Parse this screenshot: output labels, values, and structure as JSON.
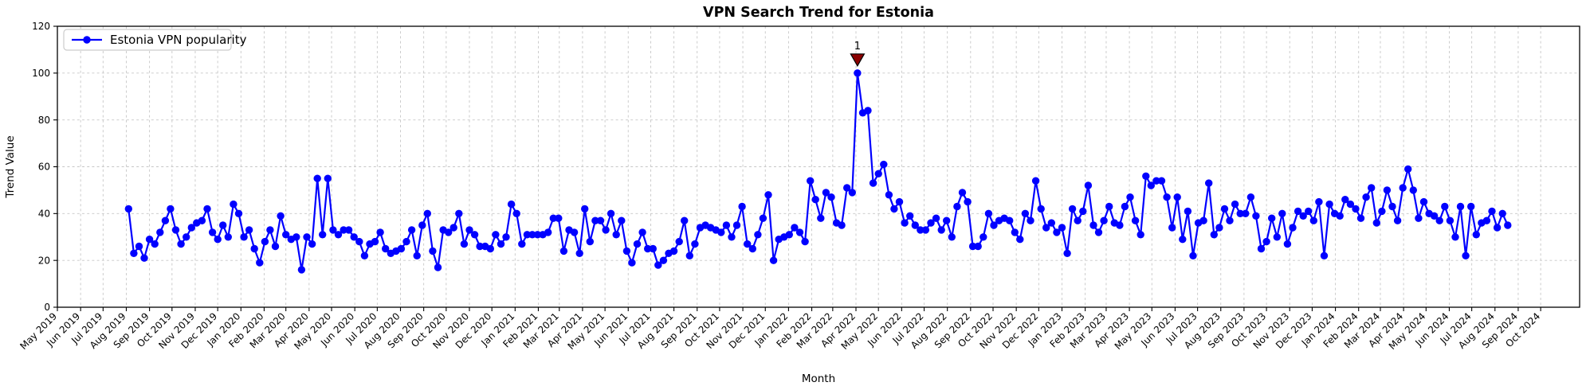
{
  "chart_data": {
    "type": "line",
    "title": "VPN Search Trend for Estonia",
    "xlabel": "Month",
    "ylabel": "Trend Value",
    "ylim": [
      0,
      120
    ],
    "yticks": [
      0,
      20,
      40,
      60,
      80,
      100,
      120
    ],
    "xlim": [
      "2019-05-01",
      "2024-11-22"
    ],
    "grid": true,
    "legend_position": "upper left",
    "xtick_labels": [
      "May 2019",
      "Jun 2019",
      "Jul 2019",
      "Aug 2019",
      "Sep 2019",
      "Oct 2019",
      "Nov 2019",
      "Dec 2019",
      "Jan 2020",
      "Feb 2020",
      "Mar 2020",
      "Apr 2020",
      "May 2020",
      "Jun 2020",
      "Jul 2020",
      "Aug 2020",
      "Sep 2020",
      "Oct 2020",
      "Nov 2020",
      "Dec 2020",
      "Jan 2021",
      "Feb 2021",
      "Mar 2021",
      "Apr 2021",
      "May 2021",
      "Jun 2021",
      "Jul 2021",
      "Aug 2021",
      "Sep 2021",
      "Oct 2021",
      "Nov 2021",
      "Dec 2021",
      "Jan 2022",
      "Feb 2022",
      "Mar 2022",
      "Apr 2022",
      "May 2022",
      "Jun 2022",
      "Jul 2022",
      "Aug 2022",
      "Sep 2022",
      "Oct 2022",
      "Nov 2022",
      "Dec 2022",
      "Jan 2023",
      "Feb 2023",
      "Mar 2023",
      "Apr 2023",
      "May 2023",
      "Jun 2023",
      "Jul 2023",
      "Aug 2023",
      "Sep 2023",
      "Oct 2023",
      "Nov 2023",
      "Dec 2023",
      "Jan 2024",
      "Feb 2024",
      "Mar 2024",
      "Apr 2024",
      "May 2024",
      "Jun 2024",
      "Jul 2024",
      "Aug 2024",
      "Sep 2024",
      "Oct 2024"
    ],
    "series": [
      {
        "name": "Estonia VPN popularity",
        "color": "#0000ff",
        "x_start": "2019-08-04",
        "x_step_days": 7,
        "values": [
          42,
          23,
          26,
          21,
          29,
          27,
          32,
          37,
          42,
          33,
          27,
          30,
          34,
          36,
          37,
          42,
          32,
          29,
          35,
          30,
          44,
          40,
          30,
          33,
          25,
          19,
          28,
          33,
          26,
          39,
          31,
          29,
          30,
          16,
          30,
          27,
          55,
          31,
          55,
          33,
          31,
          33,
          33,
          30,
          28,
          22,
          27,
          28,
          32,
          25,
          23,
          24,
          25,
          28,
          33,
          22,
          35,
          40,
          24,
          17,
          33,
          32,
          34,
          40,
          27,
          33,
          31,
          26,
          26,
          25,
          31,
          27,
          30,
          44,
          40,
          27,
          31,
          31,
          31,
          31,
          32,
          38,
          38,
          24,
          33,
          32,
          23,
          42,
          28,
          37,
          37,
          33,
          40,
          31,
          37,
          24,
          19,
          27,
          32,
          25,
          25,
          18,
          20,
          23,
          24,
          28,
          37,
          22,
          27,
          34,
          35,
          34,
          33,
          32,
          35,
          30,
          35,
          43,
          27,
          25,
          31,
          38,
          48,
          20,
          29,
          30,
          31,
          34,
          32,
          28,
          54,
          46,
          38,
          49,
          47,
          36,
          35,
          51,
          49,
          100,
          83,
          84,
          53,
          57,
          61,
          48,
          42,
          45,
          36,
          39,
          35,
          33,
          33,
          36,
          38,
          33,
          37,
          30,
          43,
          49,
          45,
          26,
          26,
          30,
          40,
          35,
          37,
          38,
          37,
          32,
          29,
          40,
          37,
          54,
          42,
          34,
          36,
          32,
          34,
          23,
          42,
          37,
          41,
          52,
          35,
          32,
          37,
          43,
          36,
          35,
          43,
          47,
          37,
          31,
          56,
          52,
          54,
          54,
          47,
          34,
          47,
          29,
          41,
          22,
          36,
          37,
          53,
          31,
          34,
          42,
          37,
          44,
          40,
          40,
          47,
          39,
          25,
          28,
          38,
          30,
          40,
          27,
          34,
          41,
          39,
          41,
          37,
          45,
          22,
          44,
          40,
          39,
          46,
          44,
          42,
          38,
          47,
          51,
          36,
          41,
          50,
          43,
          37,
          51,
          59,
          50,
          38,
          45,
          40,
          39,
          37,
          43,
          37,
          30,
          43,
          22,
          43,
          31,
          36,
          37,
          41,
          34,
          40,
          35
        ]
      }
    ],
    "annotations": [
      {
        "text": "1",
        "x": "2022-04-03",
        "y": 100,
        "marker": "triangle-down",
        "color": "#8b0000"
      }
    ],
    "legend": {
      "entries": [
        {
          "label": "Estonia VPN popularity",
          "color": "#0000ff",
          "marker": "circle"
        }
      ]
    }
  },
  "colors": {
    "line": "#0000ff",
    "annotation": "#8b0000",
    "grid": "#c7c7c7",
    "spine": "#000000",
    "background": "#ffffff",
    "legend_border": "#cccccc"
  }
}
